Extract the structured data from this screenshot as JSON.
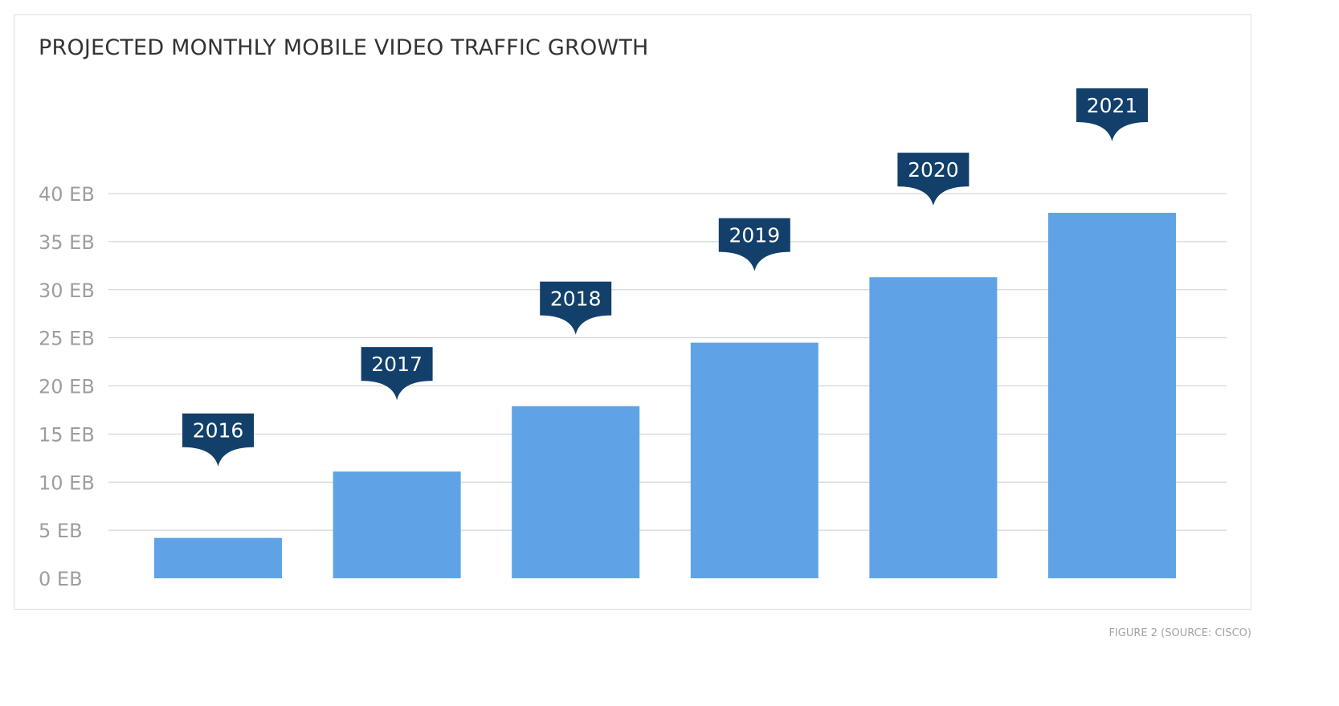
{
  "title": "PROJECTED MONTHLY MOBILE VIDEO TRAFFIC GROWTH",
  "caption": "FIGURE 2 (SOURCE: CISCO)",
  "colors": {
    "bar": "#5fa3e6",
    "label_box": "#12406b",
    "grid": "#c9cdd1",
    "tick_text": "#9b9ea2",
    "title_text": "#333333"
  },
  "chart_data": {
    "type": "bar",
    "categories": [
      "2016",
      "2017",
      "2018",
      "2019",
      "2020",
      "2021"
    ],
    "values": [
      4.2,
      11.1,
      17.9,
      24.5,
      31.3,
      38.0
    ],
    "ylim": [
      0,
      40
    ],
    "yticks": [
      0,
      5,
      10,
      15,
      20,
      25,
      30,
      35,
      40
    ],
    "ytick_labels": [
      "0 EB",
      "5 EB",
      "10 EB",
      "15 EB",
      "20 EB",
      "25 EB",
      "30 EB",
      "35 EB",
      "40 EB"
    ],
    "grid": true,
    "data_label_style": "callout-above-bar"
  }
}
